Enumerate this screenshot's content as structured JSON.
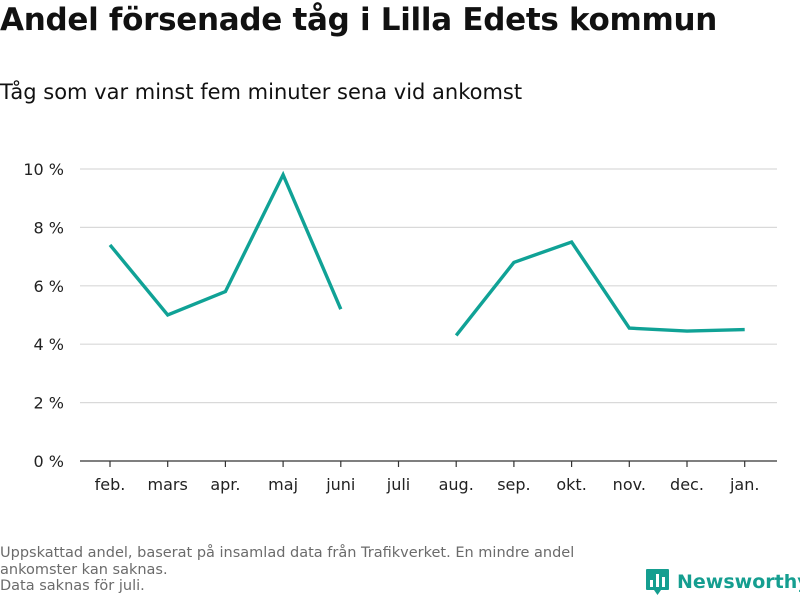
{
  "title": "Andel försenade tåg i Lilla Edets kommun",
  "subtitle": "Tåg som var minst fem minuter sena vid ankomst",
  "footnote": {
    "line1": "Uppskattad andel, baserat på insamlad data från Trafikverket. En mindre andel ankomster kan saknas.",
    "line2": "Data saknas för juli."
  },
  "brand": {
    "name": "Newsworthy",
    "icon": "bar-chart-logo-icon",
    "color": "#159e90"
  },
  "chart_data": {
    "type": "line",
    "categories": [
      "feb.",
      "mars",
      "apr.",
      "maj",
      "juni",
      "juli",
      "aug.",
      "sep.",
      "okt.",
      "nov.",
      "dec.",
      "jan."
    ],
    "series": [
      {
        "values": [
          7.4,
          5.0,
          5.8,
          9.8,
          5.2,
          null,
          4.3,
          6.8,
          7.5,
          4.55,
          4.45,
          4.5
        ],
        "color": "#10a296"
      }
    ],
    "y_ticks": [
      0,
      2,
      4,
      6,
      8,
      10
    ],
    "y_tick_labels": [
      "0 %",
      "2 %",
      "4 %",
      "6 %",
      "8 %",
      "10 %"
    ],
    "ylim": [
      0,
      10
    ],
    "grid": true,
    "legend": "none"
  }
}
